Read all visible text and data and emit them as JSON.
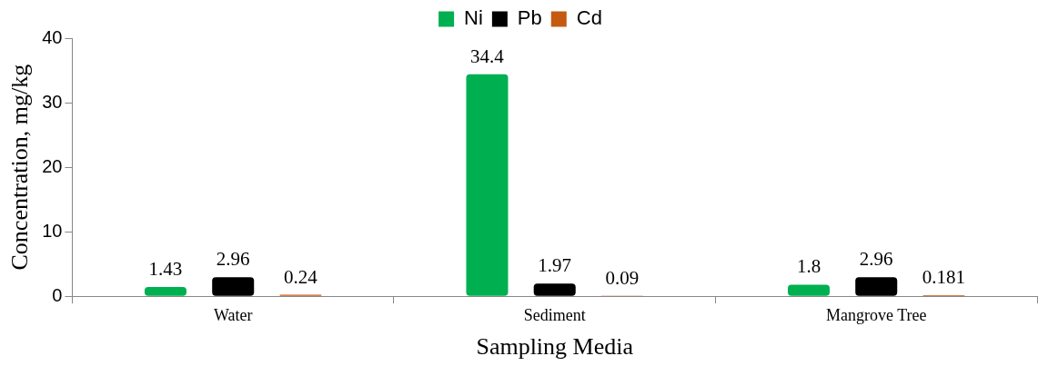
{
  "chart_data": {
    "type": "bar",
    "xlabel": "Sampling Media",
    "ylabel": "Concentration, mg/kg",
    "categories": [
      "Water",
      "Sediment",
      "Mangrove Tree"
    ],
    "series": [
      {
        "name": "Ni",
        "color": "#00b050",
        "values": [
          1.43,
          34.4,
          1.8
        ]
      },
      {
        "name": "Pb",
        "color": "#000000",
        "values": [
          2.96,
          1.97,
          2.96
        ]
      },
      {
        "name": "Cd",
        "color": "#c55a11",
        "values": [
          0.24,
          0.09,
          0.181
        ]
      }
    ],
    "ylim": [
      0,
      40
    ],
    "yticks": [
      0,
      10,
      20,
      30,
      40
    ],
    "grid": false,
    "legend": "top",
    "data_labels": true
  }
}
